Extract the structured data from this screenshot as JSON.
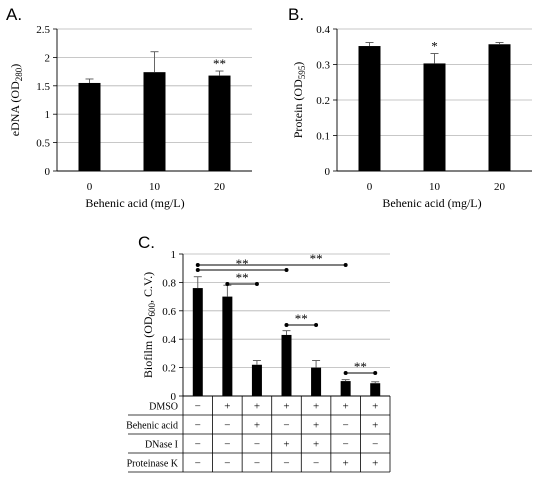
{
  "chart_data": [
    {
      "panel": "A.",
      "type": "bar",
      "xlabel": "Behenic acid (mg/L)",
      "ylabel_main": "eDNA (OD",
      "ylabel_sub": "280",
      "ylabel_end": ")",
      "categories": [
        "0",
        "10",
        "20"
      ],
      "values": [
        1.55,
        1.74,
        1.68
      ],
      "errors": [
        0.07,
        0.36,
        0.08
      ],
      "significance": [
        "",
        "",
        "**"
      ],
      "ylim": [
        0,
        2.5
      ],
      "yticks": [
        "0",
        "0.5",
        "1",
        "1.5",
        "2",
        "2.5"
      ],
      "grid": true
    },
    {
      "panel": "B.",
      "type": "bar",
      "xlabel": "Behenic acid (mg/L)",
      "ylabel_main": "Protein (OD",
      "ylabel_sub": "595",
      "ylabel_end": ")",
      "categories": [
        "0",
        "10",
        "20"
      ],
      "values": [
        0.352,
        0.303,
        0.357
      ],
      "errors": [
        0.01,
        0.028,
        0.005
      ],
      "significance": [
        "",
        "*",
        ""
      ],
      "ylim": [
        0,
        0.4
      ],
      "yticks": [
        "0",
        "0.1",
        "0.2",
        "0.3",
        "0.4"
      ],
      "grid": true
    },
    {
      "panel": "C.",
      "type": "bar",
      "ylabel_main": "Biofilm (OD",
      "ylabel_sub": "600",
      "ylabel_end": ", C.V.)",
      "values": [
        0.76,
        0.7,
        0.22,
        0.43,
        0.2,
        0.105,
        0.09
      ],
      "errors": [
        0.08,
        0.08,
        0.03,
        0.03,
        0.05,
        0.01,
        0.01
      ],
      "ylim": [
        0,
        1
      ],
      "yticks": [
        "0",
        "0.2",
        "0.4",
        "0.6",
        "0.8",
        "1"
      ],
      "grid": true,
      "comparisons": [
        {
          "from": 0,
          "to": 3,
          "label": "**"
        },
        {
          "from": 0,
          "to": 5,
          "label": "**"
        },
        {
          "from": 1,
          "to": 2,
          "label": "**"
        },
        {
          "from": 3,
          "to": 4,
          "label": "**"
        },
        {
          "from": 5,
          "to": 6,
          "label": "**"
        }
      ],
      "treatment_table": [
        {
          "label": "DMSO",
          "marks": [
            "−",
            "+",
            "+",
            "+",
            "+",
            "+",
            "+"
          ]
        },
        {
          "label": "Behenic acid",
          "marks": [
            "−",
            "−",
            "+",
            "−",
            "+",
            "−",
            "+"
          ]
        },
        {
          "label": "DNase I",
          "marks": [
            "−",
            "−",
            "−",
            "+",
            "+",
            "−",
            "−"
          ]
        },
        {
          "label": "Proteinase K",
          "marks": [
            "−",
            "−",
            "−",
            "−",
            "−",
            "+",
            "+"
          ]
        }
      ]
    }
  ]
}
